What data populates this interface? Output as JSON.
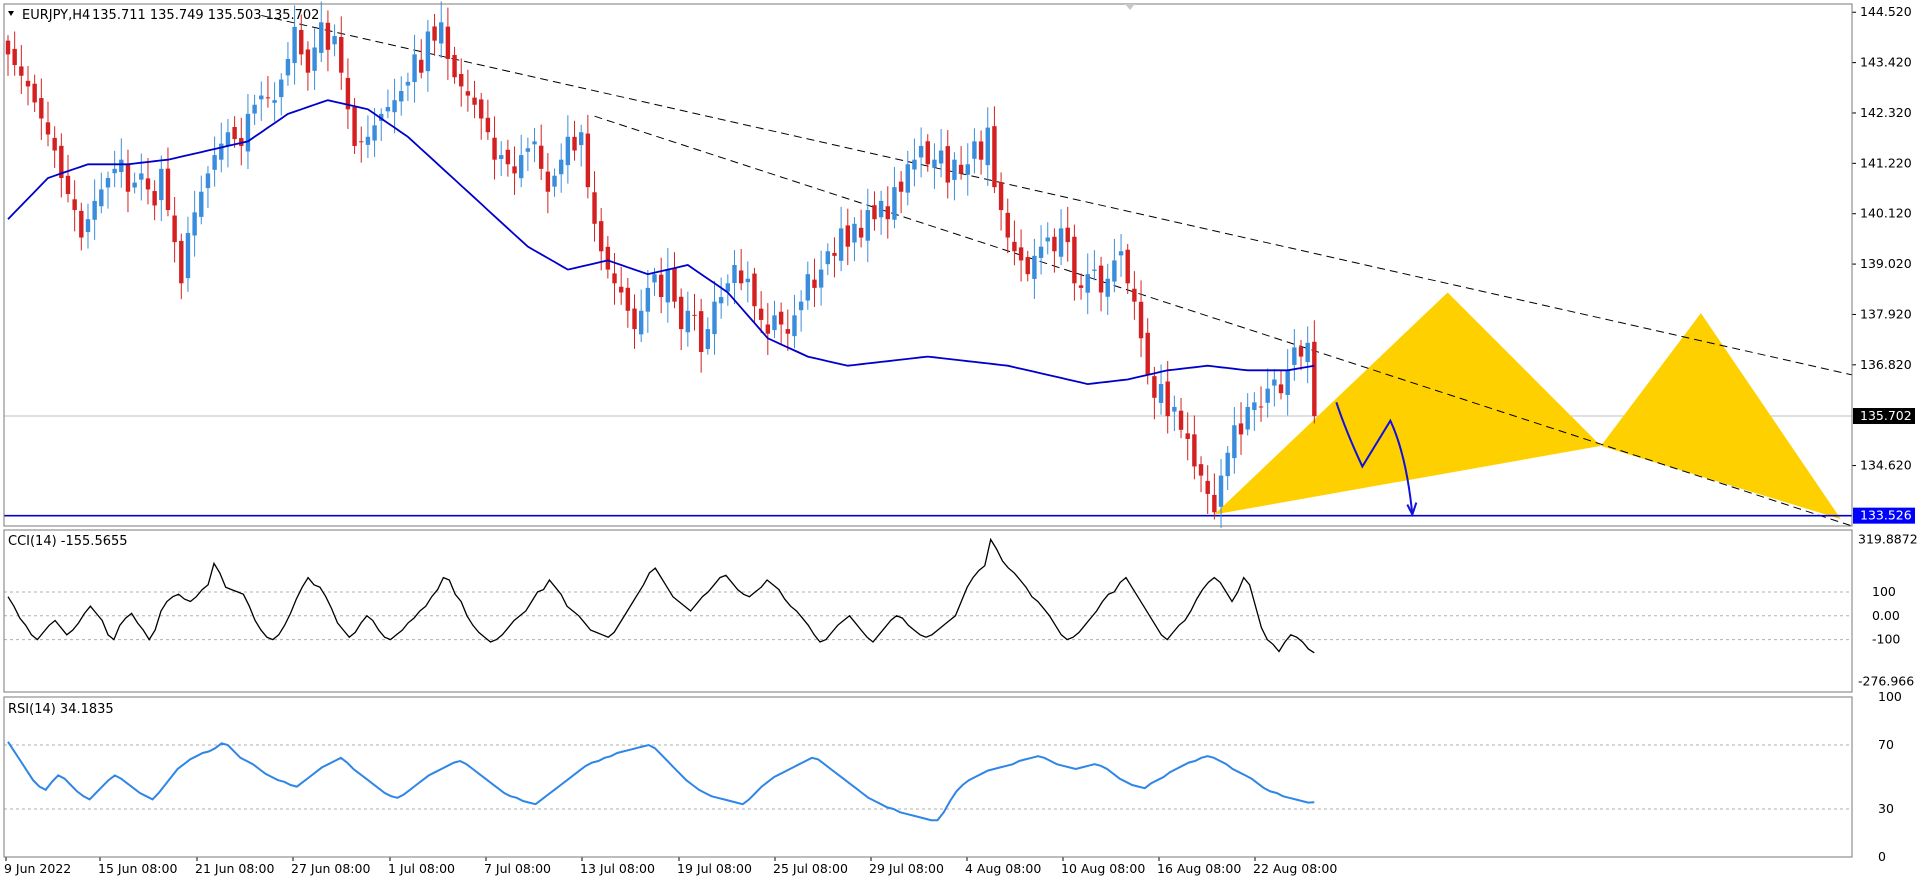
{
  "colors": {
    "background": "#ffffff",
    "bull": "#3a8ddd",
    "bear": "#d42020",
    "ma": "#0000cc",
    "support": "#0000cc",
    "pattern": "#ffd000",
    "cci_line": "#000000",
    "rsi_line": "#2f86e6",
    "trendline": "#000000",
    "forecast": "#1010dd",
    "current_price_tag_bg": "#000000",
    "support_tag_bg": "#0000ff"
  },
  "header": {
    "symbol": "EURJPY,H4",
    "ohlc": "135.711 135.749 135.503 135.702"
  },
  "chart_data": [
    {
      "type": "candlestick",
      "title": "EURJPY,H4",
      "ohlc_text": "135.711 135.749 135.503 135.702",
      "ylim": [
        133.3,
        144.7
      ],
      "y_ticks": [
        "144.520",
        "143.420",
        "142.320",
        "141.220",
        "140.120",
        "139.020",
        "137.920",
        "136.820",
        "134.620"
      ],
      "x_ticks": [
        "9 Jun 2022",
        "15 Jun 08:00",
        "21 Jun 08:00",
        "27 Jun 08:00",
        "1 Jul 08:00",
        "7 Jul 08:00",
        "13 Jul 08:00",
        "19 Jul 08:00",
        "25 Jul 08:00",
        "29 Jul 08:00",
        "4 Aug 08:00",
        "10 Aug 08:00",
        "16 Aug 08:00",
        "22 Aug 08:00"
      ],
      "current_price": {
        "value": 135.702,
        "label": "135.702"
      },
      "support_line": {
        "value": 133.526,
        "label": "133.526"
      },
      "bar_count": 197,
      "anchors": [
        [
          0,
          143.6
        ],
        [
          3,
          142.9
        ],
        [
          5,
          142.2
        ],
        [
          7,
          141.5
        ],
        [
          8,
          140.9
        ],
        [
          10,
          140.2
        ],
        [
          11,
          139.6
        ],
        [
          13,
          140.4
        ],
        [
          15,
          140.9
        ],
        [
          17,
          141.3
        ],
        [
          18,
          140.6
        ],
        [
          20,
          141.0
        ],
        [
          22,
          140.3
        ],
        [
          23,
          141.1
        ],
        [
          24,
          140.2
        ],
        [
          25,
          139.5
        ],
        [
          26,
          138.6
        ],
        [
          27,
          139.7
        ],
        [
          29,
          140.6
        ],
        [
          31,
          141.4
        ],
        [
          33,
          141.9
        ],
        [
          35,
          141.6
        ],
        [
          36,
          142.3
        ],
        [
          38,
          142.7
        ],
        [
          40,
          142.6
        ],
        [
          42,
          143.5
        ],
        [
          43,
          144.2
        ],
        [
          44,
          143.6
        ],
        [
          45,
          143.2
        ],
        [
          47,
          144.3
        ],
        [
          48,
          143.7
        ],
        [
          49,
          144.0
        ],
        [
          51,
          142.4
        ],
        [
          52,
          141.6
        ],
        [
          54,
          141.8
        ],
        [
          56,
          142.3
        ],
        [
          58,
          142.6
        ],
        [
          60,
          143.0
        ],
        [
          61,
          143.6
        ],
        [
          62,
          143.2
        ],
        [
          63,
          144.1
        ],
        [
          64,
          143.9
        ],
        [
          65,
          144.3
        ],
        [
          66,
          143.5
        ],
        [
          67,
          143.1
        ],
        [
          69,
          142.7
        ],
        [
          70,
          142.5
        ],
        [
          72,
          141.9
        ],
        [
          73,
          141.3
        ],
        [
          74,
          141.4
        ],
        [
          76,
          141.0
        ],
        [
          77,
          141.4
        ],
        [
          79,
          141.7
        ],
        [
          80,
          141.1
        ],
        [
          81,
          140.6
        ],
        [
          83,
          141.3
        ],
        [
          84,
          141.8
        ],
        [
          85,
          141.5
        ],
        [
          86,
          141.9
        ],
        [
          87,
          140.7
        ],
        [
          88,
          139.9
        ],
        [
          89,
          139.3
        ],
        [
          90,
          138.9
        ],
        [
          91,
          138.6
        ],
        [
          92,
          138.4
        ],
        [
          93,
          138.0
        ],
        [
          94,
          137.6
        ],
        [
          95,
          138.0
        ],
        [
          96,
          138.5
        ],
        [
          97,
          138.8
        ],
        [
          98,
          138.3
        ],
        [
          99,
          138.9
        ],
        [
          100,
          138.2
        ],
        [
          101,
          137.6
        ],
        [
          102,
          138.0
        ],
        [
          103,
          137.9
        ],
        [
          104,
          137.1
        ],
        [
          105,
          137.6
        ],
        [
          106,
          138.2
        ],
        [
          107,
          138.3
        ],
        [
          108,
          138.6
        ],
        [
          109,
          139.0
        ],
        [
          110,
          138.6
        ],
        [
          111,
          138.7
        ],
        [
          112,
          138.1
        ],
        [
          113,
          137.8
        ],
        [
          114,
          137.5
        ],
        [
          115,
          137.9
        ],
        [
          116,
          137.7
        ],
        [
          117,
          137.5
        ],
        [
          118,
          137.9
        ],
        [
          119,
          138.2
        ],
        [
          120,
          138.8
        ],
        [
          121,
          138.5
        ],
        [
          122,
          138.9
        ],
        [
          123,
          139.3
        ],
        [
          124,
          139.2
        ],
        [
          125,
          139.8
        ],
        [
          126,
          139.4
        ],
        [
          127,
          139.9
        ],
        [
          128,
          139.6
        ],
        [
          129,
          140.2
        ],
        [
          130,
          140.0
        ],
        [
          131,
          140.4
        ],
        [
          132,
          140.0
        ],
        [
          133,
          140.7
        ],
        [
          134,
          140.6
        ],
        [
          135,
          141.2
        ],
        [
          136,
          141.3
        ],
        [
          137,
          141.6
        ],
        [
          138,
          141.2
        ],
        [
          139,
          141.3
        ],
        [
          140,
          141.5
        ],
        [
          141,
          140.8
        ],
        [
          142,
          141.3
        ],
        [
          143,
          141.0
        ],
        [
          144,
          141.2
        ],
        [
          145,
          141.7
        ],
        [
          146,
          141.3
        ],
        [
          147,
          142.0
        ],
        [
          148,
          140.7
        ],
        [
          149,
          140.2
        ],
        [
          150,
          139.6
        ],
        [
          151,
          139.3
        ],
        [
          152,
          139.1
        ],
        [
          153,
          138.8
        ],
        [
          154,
          139.2
        ],
        [
          155,
          139.4
        ],
        [
          156,
          139.6
        ],
        [
          157,
          139.3
        ],
        [
          158,
          139.8
        ],
        [
          159,
          139.5
        ],
        [
          160,
          138.6
        ],
        [
          161,
          138.5
        ],
        [
          162,
          138.8
        ],
        [
          163,
          138.9
        ],
        [
          164,
          138.4
        ],
        [
          165,
          138.7
        ],
        [
          166,
          139.1
        ],
        [
          167,
          139.3
        ],
        [
          168,
          138.6
        ],
        [
          169,
          138.2
        ],
        [
          170,
          137.4
        ],
        [
          171,
          136.6
        ],
        [
          172,
          136.1
        ],
        [
          173,
          136.4
        ],
        [
          174,
          135.7
        ],
        [
          175,
          135.9
        ],
        [
          176,
          135.4
        ],
        [
          177,
          135.2
        ],
        [
          178,
          134.6
        ],
        [
          179,
          134.4
        ],
        [
          180,
          134.0
        ],
        [
          181,
          133.6
        ],
        [
          182,
          134.4
        ],
        [
          183,
          134.9
        ],
        [
          184,
          135.5
        ],
        [
          185,
          135.3
        ],
        [
          186,
          135.9
        ],
        [
          187,
          136.0
        ],
        [
          188,
          135.9
        ],
        [
          189,
          136.3
        ],
        [
          190,
          136.5
        ],
        [
          191,
          136.2
        ],
        [
          192,
          136.7
        ],
        [
          193,
          137.2
        ],
        [
          194,
          137.0
        ],
        [
          195,
          137.3
        ],
        [
          196,
          135.7
        ]
      ],
      "ma_anchors": [
        [
          0,
          140.0
        ],
        [
          6,
          140.9
        ],
        [
          12,
          141.2
        ],
        [
          18,
          141.2
        ],
        [
          24,
          141.3
        ],
        [
          30,
          141.5
        ],
        [
          36,
          141.7
        ],
        [
          42,
          142.3
        ],
        [
          48,
          142.6
        ],
        [
          54,
          142.4
        ],
        [
          60,
          141.8
        ],
        [
          66,
          141.0
        ],
        [
          72,
          140.2
        ],
        [
          78,
          139.4
        ],
        [
          84,
          138.9
        ],
        [
          90,
          139.1
        ],
        [
          96,
          138.8
        ],
        [
          102,
          139.0
        ],
        [
          108,
          138.4
        ],
        [
          114,
          137.4
        ],
        [
          120,
          137.0
        ],
        [
          126,
          136.8
        ],
        [
          132,
          136.9
        ],
        [
          138,
          137.0
        ],
        [
          144,
          136.9
        ],
        [
          150,
          136.8
        ],
        [
          156,
          136.6
        ],
        [
          162,
          136.4
        ],
        [
          168,
          136.5
        ],
        [
          174,
          136.7
        ],
        [
          180,
          136.8
        ],
        [
          186,
          136.7
        ],
        [
          192,
          136.7
        ],
        [
          196,
          136.8
        ]
      ],
      "pattern_points": {
        "X": [
          181,
          133.55
        ],
        "A": [
          216,
          138.4
        ],
        "B": [
          239,
          135.05
        ],
        "C": [
          254,
          137.95
        ],
        "D": [
          275,
          133.45
        ]
      }
    },
    {
      "type": "line",
      "title": "CCI(14) -155.5655",
      "ylim": [
        -320,
        360
      ],
      "y_ticks": [
        "319.8872",
        "100",
        "0.00",
        "-100",
        "-276.966"
      ],
      "levels": [
        100,
        -100
      ],
      "values": [
        80,
        40,
        -10,
        -40,
        -80,
        -100,
        -70,
        -40,
        -20,
        -50,
        -80,
        -60,
        -30,
        10,
        40,
        10,
        -20,
        -80,
        -100,
        -40,
        -10,
        10,
        -30,
        -60,
        -100,
        -60,
        20,
        60,
        80,
        90,
        70,
        60,
        80,
        110,
        130,
        220,
        180,
        120,
        110,
        100,
        90,
        40,
        -20,
        -60,
        -90,
        -100,
        -80,
        -40,
        10,
        70,
        120,
        160,
        130,
        120,
        80,
        30,
        -30,
        -60,
        -90,
        -70,
        -30,
        0,
        -20,
        -60,
        -90,
        -100,
        -80,
        -60,
        -30,
        -10,
        20,
        40,
        80,
        110,
        160,
        150,
        90,
        60,
        0,
        -40,
        -70,
        -90,
        -110,
        -100,
        -80,
        -50,
        -20,
        0,
        20,
        60,
        100,
        110,
        150,
        120,
        90,
        40,
        20,
        0,
        -30,
        -60,
        -70,
        -80,
        -90,
        -70,
        -30,
        10,
        50,
        90,
        130,
        180,
        200,
        160,
        120,
        80,
        60,
        40,
        20,
        50,
        80,
        100,
        130,
        160,
        170,
        140,
        110,
        90,
        80,
        100,
        120,
        150,
        130,
        110,
        70,
        40,
        20,
        -10,
        -40,
        -80,
        -110,
        -100,
        -70,
        -40,
        -20,
        0,
        -30,
        -60,
        -90,
        -110,
        -80,
        -50,
        -20,
        0,
        -10,
        -40,
        -60,
        -80,
        -90,
        -80,
        -60,
        -40,
        -20,
        0,
        60,
        120,
        160,
        190,
        210,
        320,
        280,
        230,
        200,
        180,
        150,
        120,
        80,
        60,
        30,
        0,
        -40,
        -80,
        -100,
        -90,
        -70,
        -40,
        -10,
        20,
        60,
        90,
        100,
        140,
        160,
        120,
        80,
        40,
        0,
        -40,
        -80,
        -100,
        -70,
        -40,
        -20,
        20,
        70,
        110,
        140,
        160,
        140,
        100,
        60,
        100,
        160,
        130,
        40,
        -50,
        -100,
        -120,
        -150,
        -110,
        -80,
        -90,
        -110,
        -140,
        -155.5655
      ]
    },
    {
      "type": "line",
      "title": "RSI(14) 34.1835",
      "ylim": [
        0,
        100
      ],
      "y_ticks": [
        "100",
        "70",
        "30",
        "0"
      ],
      "levels": [
        70,
        30
      ],
      "values": [
        72,
        66,
        60,
        54,
        48,
        44,
        42,
        47,
        51,
        49,
        45,
        41,
        38,
        36,
        40,
        44,
        48,
        51,
        49,
        46,
        43,
        40,
        38,
        36,
        40,
        45,
        50,
        55,
        58,
        61,
        63,
        65,
        66,
        68,
        71,
        70,
        66,
        62,
        60,
        58,
        55,
        52,
        50,
        48,
        47,
        45,
        44,
        47,
        50,
        53,
        56,
        58,
        60,
        62,
        59,
        55,
        52,
        49,
        46,
        43,
        40,
        38,
        37,
        39,
        42,
        45,
        48,
        51,
        53,
        55,
        57,
        59,
        60,
        58,
        55,
        52,
        49,
        46,
        43,
        40,
        38,
        37,
        35,
        34,
        33,
        36,
        39,
        42,
        45,
        48,
        51,
        54,
        57,
        59,
        60,
        62,
        63,
        65,
        66,
        67,
        68,
        69,
        70,
        68,
        64,
        60,
        56,
        52,
        48,
        45,
        42,
        40,
        38,
        37,
        36,
        35,
        34,
        33,
        36,
        40,
        44,
        47,
        50,
        52,
        54,
        56,
        58,
        60,
        62,
        61,
        58,
        55,
        52,
        49,
        46,
        43,
        40,
        37,
        35,
        33,
        31,
        30,
        28,
        27,
        26,
        25,
        24,
        23,
        23,
        28,
        35,
        41,
        45,
        48,
        50,
        52,
        54,
        55,
        56,
        57,
        58,
        60,
        61,
        62,
        63,
        62,
        60,
        58,
        57,
        56,
        55,
        56,
        57,
        58,
        57,
        55,
        52,
        49,
        47,
        45,
        44,
        43,
        46,
        48,
        50,
        53,
        55,
        57,
        59,
        60,
        62,
        63,
        62,
        60,
        58,
        55,
        53,
        51,
        49,
        46,
        43,
        41,
        40,
        38,
        37,
        36,
        35,
        34,
        34.1835
      ]
    }
  ]
}
